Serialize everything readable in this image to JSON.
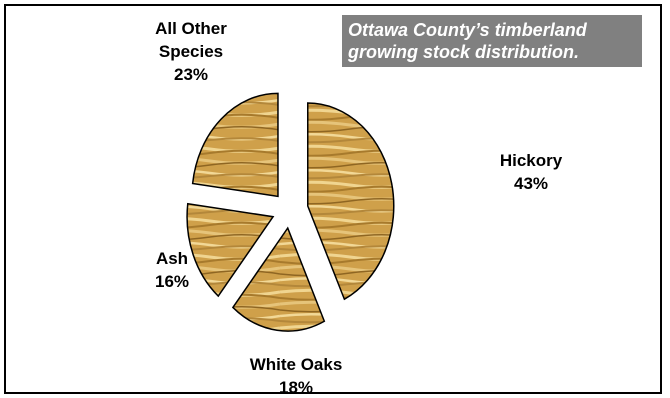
{
  "chart_data": {
    "type": "pie",
    "title_lines": [
      "Ottawa County’s timberland",
      "growing stock distribution."
    ],
    "slices": [
      {
        "label": "Hickory",
        "percent_label": "43%",
        "value": 43
      },
      {
        "label": "White Oaks",
        "percent_label": "18%",
        "value": 18
      },
      {
        "label": "Ash",
        "percent_label": "16%",
        "value": 16
      },
      {
        "label_lines": [
          "All Other",
          "Species"
        ],
        "percent_label": "23%",
        "value": 23
      }
    ],
    "exploded": true,
    "fill_style": "wood-grain texture",
    "colors": {
      "wood_light": "#d9b25c",
      "wood_dark": "#8a6420",
      "title_bg": "#808080",
      "title_text": "#ffffff"
    }
  }
}
